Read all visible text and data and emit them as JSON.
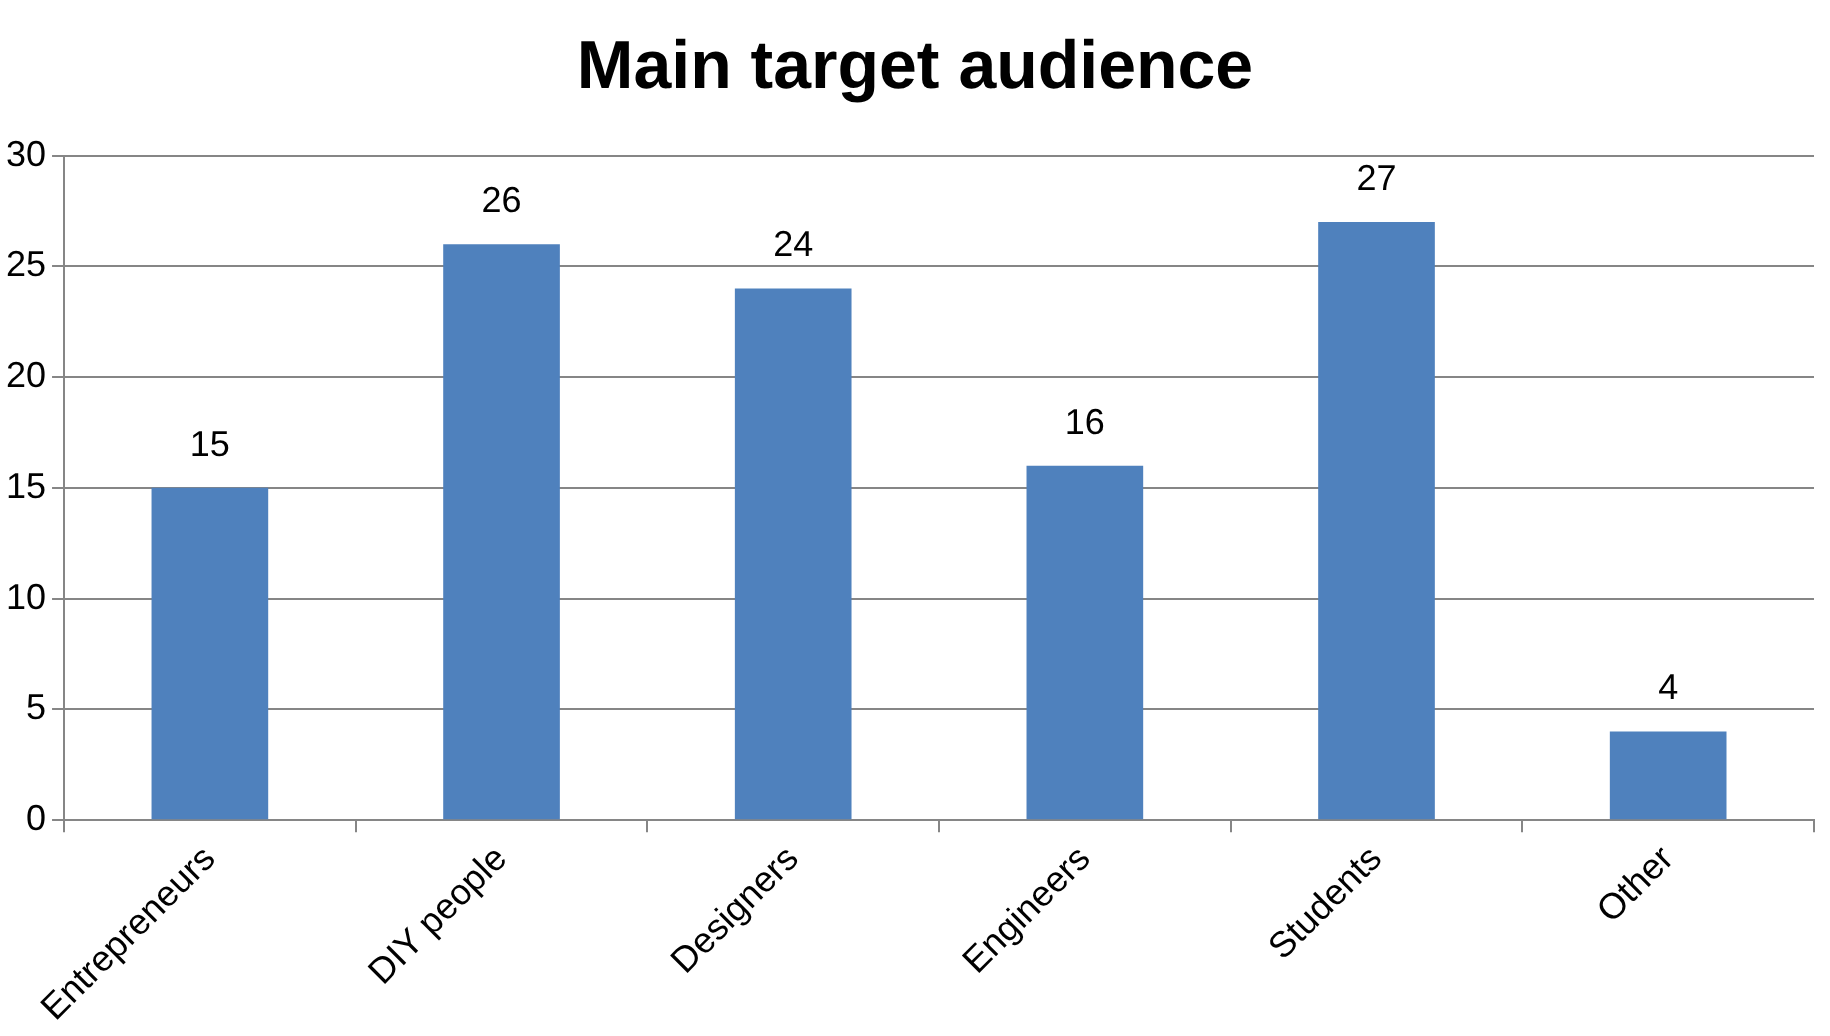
{
  "chart_data": {
    "type": "bar",
    "title": "Main target audience",
    "categories": [
      "Entrepreneurs",
      "DIY people",
      "Designers",
      "Engineers",
      "Students",
      "Other"
    ],
    "values": [
      15,
      26,
      24,
      16,
      27,
      4
    ],
    "color": "#4f81bd",
    "ylim": [
      0,
      30
    ],
    "yticks": [
      0,
      5,
      10,
      15,
      20,
      25,
      30
    ],
    "grid": "y",
    "data_labels": true,
    "legend": false
  }
}
